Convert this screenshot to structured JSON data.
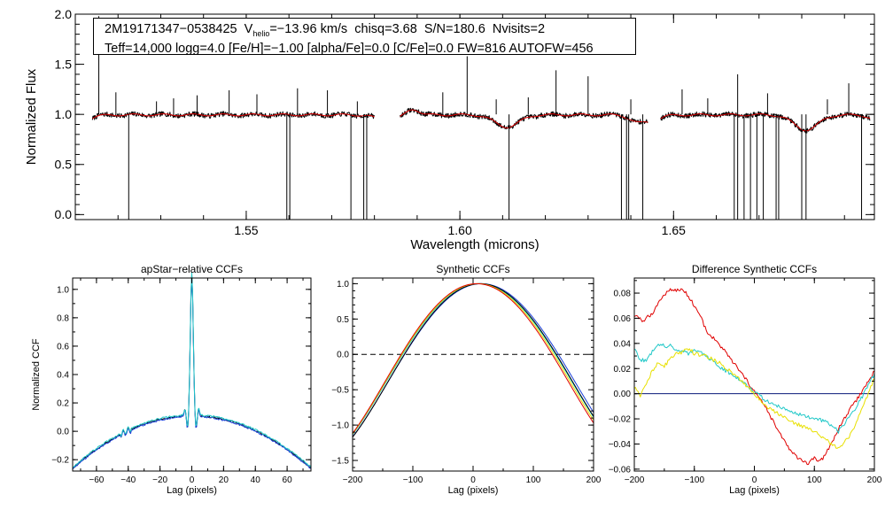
{
  "chart_data": [
    {
      "id": "spectrum",
      "type": "line",
      "title": "",
      "xlabel": "Wavelength (microns)",
      "ylabel": "Normalized Flux",
      "xlim": [
        1.51,
        1.697
      ],
      "ylim": [
        -0.05,
        2.0
      ],
      "x_ticks": [
        {
          "value": 1.55,
          "label": "1.55"
        },
        {
          "value": 1.6,
          "label": "1.60"
        },
        {
          "value": 1.65,
          "label": "1.65"
        }
      ],
      "y_ticks": [
        {
          "value": 0.0,
          "label": "0.0"
        },
        {
          "value": 0.5,
          "label": "0.5"
        },
        {
          "value": 1.0,
          "label": "1.0"
        },
        {
          "value": 1.5,
          "label": "1.5"
        },
        {
          "value": 2.0,
          "label": "2.0"
        }
      ],
      "header": {
        "object": "2M19171347−0538425",
        "v_prefix": "V",
        "v_sub": "helio",
        "v_value": "=−13.96 km/s",
        "chisq": "chisq=3.68",
        "snr": "S/N=180.6",
        "nvisits": "Nvisits=2",
        "line2": "Teff=14,000 logg=4.0 [Fe/H]=−1.00 [alpha/Fe]=0.0 [C/Fe]=0.0 FW=816 AUTOFW=456"
      },
      "chips": [
        {
          "name": "blue",
          "range": [
            1.514,
            1.58
          ]
        },
        {
          "name": "green",
          "range": [
            1.586,
            1.644
          ]
        },
        {
          "name": "red",
          "range": [
            1.647,
            1.696
          ]
        }
      ],
      "series": [
        {
          "name": "observed",
          "color": "#000000"
        },
        {
          "name": "best-fit model",
          "color": "#e00000"
        }
      ],
      "bad_pixel_drops": [
        1.5225,
        1.5595,
        1.5602,
        1.5745,
        1.5775,
        1.5782,
        1.6115,
        1.6378,
        1.639,
        1.6395,
        1.6428,
        1.6642,
        1.665,
        1.6665,
        1.668,
        1.6695,
        1.671,
        1.674,
        1.6746,
        1.68,
        1.681,
        1.694
      ],
      "emission_spikes": [
        {
          "x": 1.5155,
          "y": 1.98
        },
        {
          "x": 1.5195,
          "y": 1.22
        },
        {
          "x": 1.529,
          "y": 1.13
        },
        {
          "x": 1.533,
          "y": 1.16
        },
        {
          "x": 1.5385,
          "y": 1.19
        },
        {
          "x": 1.546,
          "y": 1.24
        },
        {
          "x": 1.5525,
          "y": 1.2
        },
        {
          "x": 1.562,
          "y": 1.26
        },
        {
          "x": 1.569,
          "y": 1.24
        },
        {
          "x": 1.576,
          "y": 1.13
        },
        {
          "x": 1.596,
          "y": 1.22
        },
        {
          "x": 1.6017,
          "y": 1.58
        },
        {
          "x": 1.6085,
          "y": 1.15
        },
        {
          "x": 1.616,
          "y": 1.17
        },
        {
          "x": 1.6225,
          "y": 1.44
        },
        {
          "x": 1.63,
          "y": 1.38
        },
        {
          "x": 1.64,
          "y": 1.15
        },
        {
          "x": 1.652,
          "y": 1.25
        },
        {
          "x": 1.658,
          "y": 1.16
        },
        {
          "x": 1.665,
          "y": 1.4
        },
        {
          "x": 1.672,
          "y": 1.21
        },
        {
          "x": 1.686,
          "y": 1.15
        },
        {
          "x": 1.691,
          "y": 1.31
        }
      ],
      "absorption_features": [
        {
          "x": 1.611,
          "width": 0.004,
          "depth": 0.12
        },
        {
          "x": 1.642,
          "width": 0.003,
          "depth": 0.07
        },
        {
          "x": 1.681,
          "width": 0.004,
          "depth": 0.15
        },
        {
          "x": 1.589,
          "width": 0.002,
          "depth": -0.06
        }
      ]
    },
    {
      "id": "apstar-ccf",
      "type": "line",
      "title": "apStar−relative CCFs",
      "xlabel": "Lag (pixels)",
      "ylabel": "Normalized CCF",
      "xlim": [
        -75,
        75
      ],
      "ylim": [
        -0.28,
        1.08
      ],
      "x_ticks": [
        {
          "value": -60,
          "label": "−60"
        },
        {
          "value": -40,
          "label": "−40"
        },
        {
          "value": -20,
          "label": "−20"
        },
        {
          "value": 0,
          "label": "0"
        },
        {
          "value": 20,
          "label": "20"
        },
        {
          "value": 40,
          "label": "40"
        },
        {
          "value": 60,
          "label": "60"
        }
      ],
      "y_ticks": [
        {
          "value": -0.2,
          "label": "−0.2"
        },
        {
          "value": 0.0,
          "label": "0.0"
        },
        {
          "value": 0.2,
          "label": "0.2"
        },
        {
          "value": 0.4,
          "label": "0.4"
        },
        {
          "value": 0.6,
          "label": "0.6"
        },
        {
          "value": 0.8,
          "label": "0.8"
        },
        {
          "value": 1.0,
          "label": "1.0"
        }
      ],
      "series": [
        {
          "name": "combined",
          "color": "#000000",
          "offset": 0.0
        },
        {
          "name": "visit 1",
          "color": "#1a3fd8",
          "offset": -0.005
        },
        {
          "name": "visit 2",
          "color": "#20c8c8",
          "offset": 0.006
        }
      ],
      "shape": {
        "wing_peak": 0.11,
        "wing_edge": -0.26,
        "peak": 1.0,
        "peak_width": 1.3
      }
    },
    {
      "id": "synthetic-ccf",
      "type": "line",
      "title": "Synthetic CCFs",
      "xlabel": "Lag (pixels)",
      "ylabel": "",
      "xlim": [
        -200,
        200
      ],
      "ylim": [
        -1.65,
        1.08
      ],
      "x_ticks": [
        {
          "value": -200,
          "label": "−200"
        },
        {
          "value": -100,
          "label": "−100"
        },
        {
          "value": 0,
          "label": "0"
        },
        {
          "value": 100,
          "label": "100"
        },
        {
          "value": 200,
          "label": "200"
        }
      ],
      "y_ticks": [
        {
          "value": -1.5,
          "label": "−1.5"
        },
        {
          "value": -1.0,
          "label": "−1.0"
        },
        {
          "value": -0.5,
          "label": "−0.5"
        },
        {
          "value": 0.0,
          "label": "0.0"
        },
        {
          "value": 0.5,
          "label": "0.5"
        },
        {
          "value": 1.0,
          "label": "1.0"
        }
      ],
      "zero_line": 0.0,
      "series": [
        {
          "name": "model 1",
          "color": "#000000",
          "center": 12,
          "width": 84
        },
        {
          "name": "model 2",
          "color": "#1a3fd8",
          "center": 14,
          "width": 85
        },
        {
          "name": "model 3",
          "color": "#20c8c8",
          "center": 10,
          "width": 84.5
        },
        {
          "name": "model 4",
          "color": "#e8e000",
          "center": 8,
          "width": 84
        },
        {
          "name": "model 5",
          "color": "#e00000",
          "center": 6,
          "width": 83.5
        }
      ]
    },
    {
      "id": "difference-ccf",
      "type": "line",
      "title": "Difference Synthetic CCFs",
      "xlabel": "Lag (pixels)",
      "ylabel": "",
      "xlim": [
        -200,
        200
      ],
      "ylim": [
        -0.0615,
        0.092
      ],
      "x_ticks": [
        {
          "value": -200,
          "label": "−200"
        },
        {
          "value": -100,
          "label": "−100"
        },
        {
          "value": 0,
          "label": "0"
        },
        {
          "value": 100,
          "label": "100"
        },
        {
          "value": 200,
          "label": "200"
        }
      ],
      "y_ticks": [
        {
          "value": -0.06,
          "label": "−0.06"
        },
        {
          "value": -0.04,
          "label": "−0.04"
        },
        {
          "value": -0.02,
          "label": "−0.02"
        },
        {
          "value": 0.0,
          "label": "0.00"
        },
        {
          "value": 0.02,
          "label": "0.02"
        },
        {
          "value": 0.04,
          "label": "0.04"
        },
        {
          "value": 0.06,
          "label": "0.06"
        },
        {
          "value": 0.08,
          "label": "0.08"
        }
      ],
      "series": [
        {
          "name": "reference (zero)",
          "color": "#0a1a7a",
          "x": [
            -200,
            200
          ],
          "y": [
            0.0,
            0.0
          ]
        },
        {
          "name": "red difference",
          "color": "#e00000",
          "x": [
            -200,
            -185,
            -170,
            -160,
            -150,
            -140,
            -130,
            -120,
            -110,
            -100,
            -90,
            -80,
            -60,
            -40,
            -20,
            0,
            20,
            40,
            60,
            70,
            80,
            90,
            100,
            110,
            120,
            130,
            140,
            160,
            180,
            200
          ],
          "y": [
            0.062,
            0.058,
            0.064,
            0.072,
            0.079,
            0.083,
            0.082,
            0.083,
            0.078,
            0.07,
            0.062,
            0.05,
            0.04,
            0.028,
            0.015,
            0.002,
            -0.012,
            -0.03,
            -0.045,
            -0.05,
            -0.054,
            -0.056,
            -0.051,
            -0.054,
            -0.047,
            -0.038,
            -0.028,
            -0.012,
            0.002,
            0.018
          ]
        },
        {
          "name": "cyan difference",
          "color": "#20c8c8",
          "x": [
            -200,
            -190,
            -180,
            -170,
            -160,
            -150,
            -140,
            -130,
            -120,
            -110,
            -100,
            -80,
            -60,
            -40,
            -20,
            0,
            20,
            40,
            60,
            80,
            100,
            120,
            140,
            160,
            180,
            200
          ],
          "y": [
            0.036,
            0.027,
            0.026,
            0.034,
            0.04,
            0.038,
            0.038,
            0.034,
            0.035,
            0.032,
            0.035,
            0.03,
            0.022,
            0.016,
            0.01,
            0.002,
            -0.006,
            -0.01,
            -0.014,
            -0.017,
            -0.02,
            -0.022,
            -0.03,
            -0.018,
            -0.002,
            0.016
          ]
        },
        {
          "name": "yellow difference",
          "color": "#e8e000",
          "x": [
            -200,
            -190,
            -180,
            -170,
            -160,
            -150,
            -140,
            -130,
            -120,
            -110,
            -100,
            -80,
            -60,
            -40,
            -20,
            0,
            20,
            40,
            60,
            80,
            100,
            120,
            140,
            160,
            180,
            200
          ],
          "y": [
            0.005,
            -0.002,
            0.008,
            0.018,
            0.025,
            0.022,
            0.028,
            0.032,
            0.033,
            0.036,
            0.032,
            0.03,
            0.025,
            0.018,
            0.01,
            0.0,
            -0.01,
            -0.016,
            -0.022,
            -0.026,
            -0.03,
            -0.037,
            -0.044,
            -0.033,
            -0.012,
            0.012
          ]
        }
      ]
    }
  ]
}
